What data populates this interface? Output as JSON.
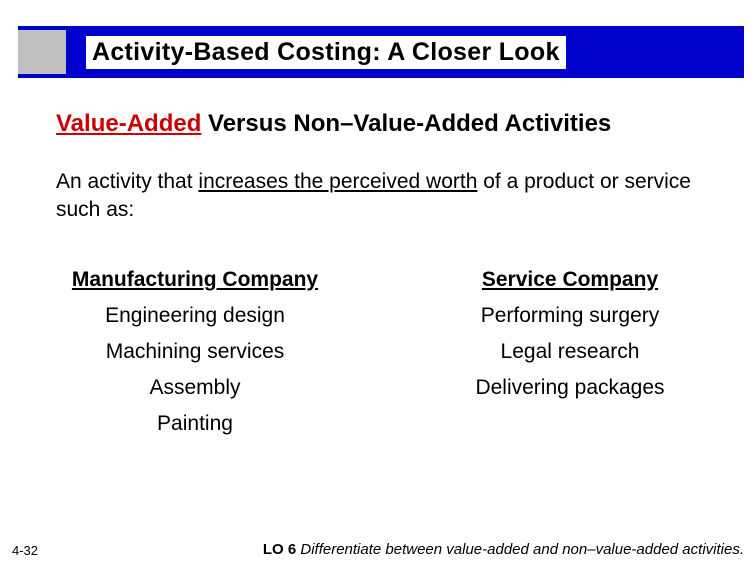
{
  "title": "Activity-Based Costing: A Closer Look",
  "subtitle": {
    "red": "Value-Added",
    "black": " Versus Non–Value-Added Activities"
  },
  "description": {
    "pre": "An activity that ",
    "underlined": "increases the perceived worth",
    "post": " of a product or service such as:"
  },
  "columns": {
    "left": {
      "header": "Manufacturing Company",
      "items": [
        "Engineering design",
        "Machining services",
        "Assembly",
        "Painting"
      ]
    },
    "right": {
      "header": "Service Company",
      "items": [
        "Performing surgery",
        "Legal research",
        "Delivering packages"
      ]
    }
  },
  "page_number": "4-32",
  "footer": {
    "lo_label": "LO 6",
    "lo_text": "  Differentiate between value-added and non–value-added activities."
  },
  "colors": {
    "title_bar_bg": "#0000cc",
    "title_icon_bg": "#c0c0c0",
    "subtitle_red": "#cc0000",
    "text": "#000000",
    "background": "#ffffff"
  }
}
